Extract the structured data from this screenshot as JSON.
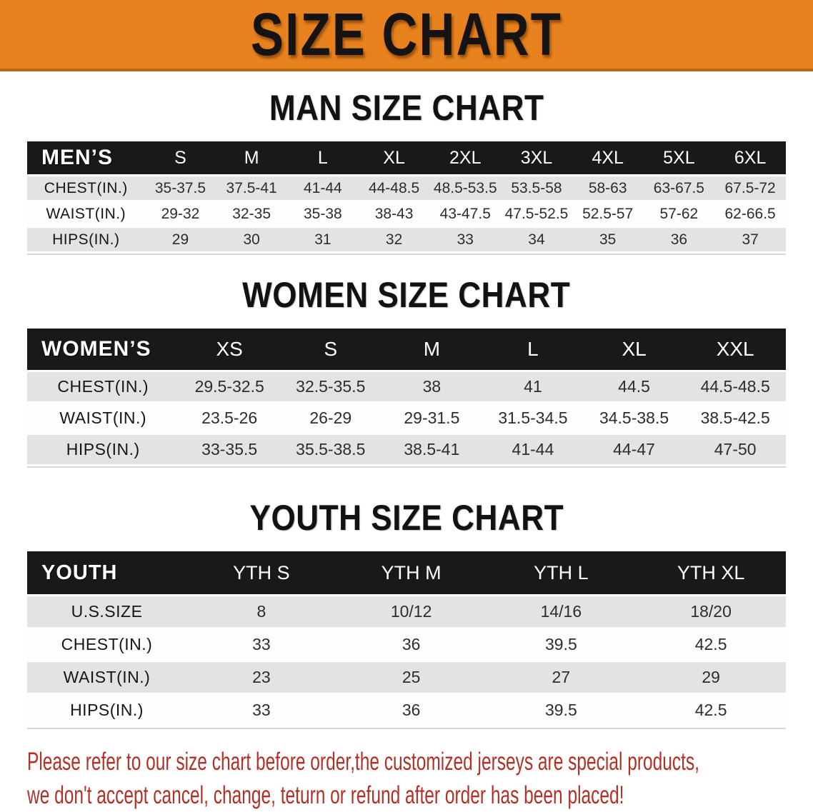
{
  "banner": {
    "title": "SIZE CHART",
    "bg_color": "#E8821E",
    "text_color": "#161412"
  },
  "colors": {
    "banner_orange": "#E8821E",
    "header_black": "#191919",
    "row_gray": "#E3E3E3",
    "row_white": "#FDFDFD",
    "disclaimer_red": "#B13127"
  },
  "sections": [
    {
      "id": "men",
      "title": "MAN SIZE CHART",
      "header_label": "MEN’S",
      "columns": [
        "S",
        "M",
        "L",
        "XL",
        "2XL",
        "3XL",
        "4XL",
        "5XL",
        "6XL"
      ],
      "rows": [
        {
          "label": "CHEST(IN.)",
          "values": [
            "35-37.5",
            "37.5-41",
            "41-44",
            "44-48.5",
            "48.5-53.5",
            "53.5-58",
            "58-63",
            "63-67.5",
            "67.5-72"
          ]
        },
        {
          "label": "WAIST(IN.)",
          "values": [
            "29-32",
            "32-35",
            "35-38",
            "38-43",
            "43-47.5",
            "47.5-52.5",
            "52.5-57",
            "57-62",
            "62-66.5"
          ]
        },
        {
          "label": "HIPS(IN.)",
          "values": [
            "29",
            "30",
            "31",
            "32",
            "33",
            "34",
            "35",
            "36",
            "37"
          ]
        }
      ]
    },
    {
      "id": "women",
      "title": "WOMEN SIZE CHART",
      "header_label": "WOMEN’S",
      "columns": [
        "XS",
        "S",
        "M",
        "L",
        "XL",
        "XXL"
      ],
      "rows": [
        {
          "label": "CHEST(IN.)",
          "values": [
            "29.5-32.5",
            "32.5-35.5",
            "38",
            "41",
            "44.5",
            "44.5-48.5"
          ]
        },
        {
          "label": "WAIST(IN.)",
          "values": [
            "23.5-26",
            "26-29",
            "29-31.5",
            "31.5-34.5",
            "34.5-38.5",
            "38.5-42.5"
          ]
        },
        {
          "label": "HIPS(IN.)",
          "values": [
            "33-35.5",
            "35.5-38.5",
            "38.5-41",
            "41-44",
            "44-47",
            "47-50"
          ]
        }
      ]
    },
    {
      "id": "youth",
      "title": "YOUTH SIZE CHART",
      "header_label": "YOUTH",
      "columns": [
        "YTH S",
        "YTH M",
        "YTH L",
        "YTH XL"
      ],
      "rows": [
        {
          "label": "U.S.SIZE",
          "values": [
            "8",
            "10/12",
            "14/16",
            "18/20"
          ]
        },
        {
          "label": "CHEST(IN.)",
          "values": [
            "33",
            "36",
            "39.5",
            "42.5"
          ]
        },
        {
          "label": "WAIST(IN.)",
          "values": [
            "23",
            "25",
            "27",
            "29"
          ]
        },
        {
          "label": "HIPS(IN.)",
          "values": [
            "33",
            "36",
            "39.5",
            "42.5"
          ]
        }
      ]
    }
  ],
  "footer": {
    "line1": "Please refer to our size chart before order,the customized jerseys are special products,",
    "line2": "we don't accept cancel, change, teturn or refund after order has been placed!"
  }
}
